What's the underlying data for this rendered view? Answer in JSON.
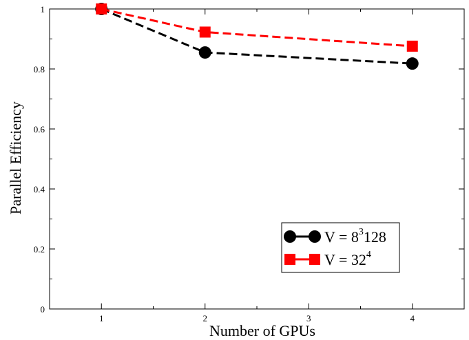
{
  "chart_data": {
    "type": "line",
    "title": "",
    "xlabel": "Number of GPUs",
    "ylabel": "Parallel Efficiency",
    "xlim": [
      0.5,
      4.5
    ],
    "ylim": [
      0,
      1
    ],
    "xticks": [
      "1",
      "2",
      "3",
      "4"
    ],
    "yticks": [
      "0",
      "0.2",
      "0.4",
      "0.6",
      "0.8",
      "1"
    ],
    "grid": false,
    "legend_position": "bottom-right",
    "x": [
      1,
      2,
      4
    ],
    "series": [
      {
        "name": "V = 8^3 128",
        "label_base": "V = 8",
        "label_sup": "3",
        "label_tail": "128",
        "values": [
          1.0,
          0.855,
          0.818
        ],
        "color": "#000000",
        "marker": "circle"
      },
      {
        "name": "V = 32^4",
        "label_base": "V = 32",
        "label_sup": "4",
        "label_tail": "",
        "values": [
          1.0,
          0.923,
          0.876
        ],
        "color": "#ff0000",
        "marker": "square"
      }
    ]
  }
}
